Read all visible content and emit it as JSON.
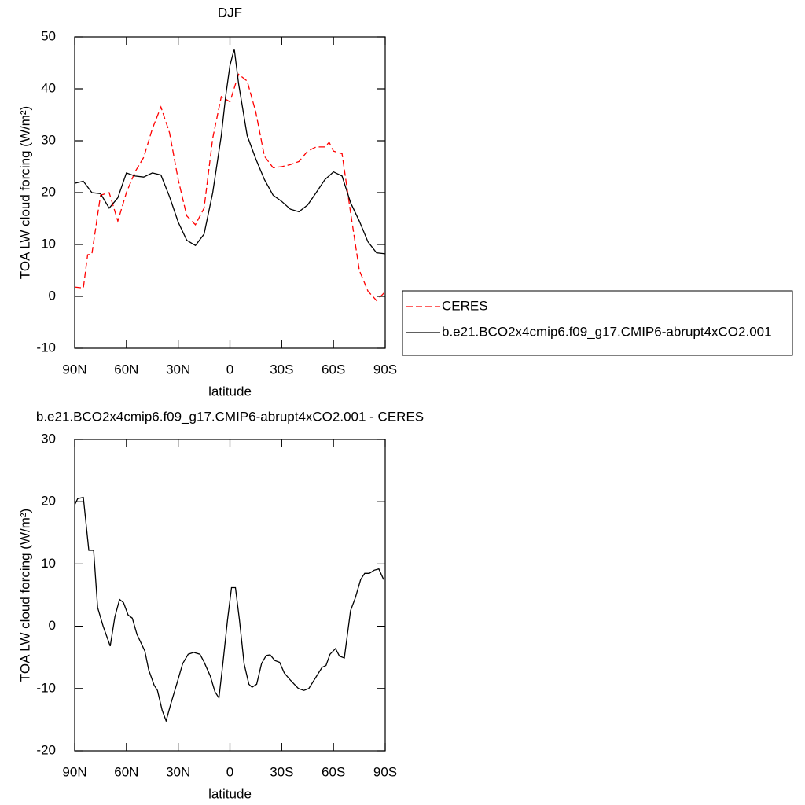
{
  "chart_data": [
    {
      "type": "line",
      "title": "DJF",
      "xlabel": "latitude",
      "ylabel": "TOA LW cloud forcing (W/m²)",
      "xlim": [
        90,
        -90
      ],
      "xticks": [
        {
          "value": 90,
          "label": "90N"
        },
        {
          "value": 60,
          "label": "60N"
        },
        {
          "value": 30,
          "label": "30N"
        },
        0,
        {
          "value": -30,
          "label": "30S"
        },
        {
          "value": -60,
          "label": "60S"
        },
        {
          "value": -90,
          "label": "90S"
        }
      ],
      "ylim": [
        -10,
        50
      ],
      "yticks": [
        -10,
        0,
        10,
        20,
        30,
        40,
        50
      ],
      "legend": "right",
      "series": [
        {
          "name": "CERES",
          "color": "#ff0000",
          "dash": true,
          "x": [
            90,
            85,
            82.5,
            80,
            75,
            70,
            65,
            60,
            55,
            50,
            45,
            40,
            35,
            30,
            25,
            20,
            15,
            10,
            5,
            0,
            -5,
            -10,
            -15,
            -20,
            -25,
            -30,
            -35,
            -40,
            -45,
            -50,
            -55,
            -57.5,
            -60,
            -65,
            -70,
            -75,
            -80,
            -85,
            -90
          ],
          "values": [
            1.8,
            1.6,
            8,
            8.2,
            19.5,
            20,
            14.5,
            20,
            24,
            26.8,
            32.3,
            36.5,
            31.5,
            22.5,
            15.5,
            13.8,
            17,
            30.5,
            38.5,
            37.5,
            42.8,
            41.5,
            35.5,
            27,
            24.8,
            25,
            25.4,
            26,
            28,
            28.8,
            28.8,
            29.7,
            28,
            27.5,
            16,
            5,
            1,
            -0.8,
            0.9
          ]
        },
        {
          "name": "b.e21.BCO2x4cmip6.f09_g17.CMIP6-abrupt4xCO2.001",
          "color": "#000000",
          "dash": false,
          "x": [
            90,
            85,
            80,
            75,
            70,
            65,
            60,
            55,
            50,
            45,
            40,
            35,
            30,
            25,
            20,
            15,
            10,
            5,
            2.5,
            0,
            -2.5,
            -5,
            -10,
            -15,
            -20,
            -25,
            -30,
            -35,
            -40,
            -45,
            -50,
            -55,
            -60,
            -65,
            -70,
            -75,
            -80,
            -85,
            -90
          ],
          "values": [
            21.8,
            22.2,
            20,
            19.8,
            17,
            19,
            23.8,
            23.2,
            23,
            23.8,
            23.4,
            19.2,
            14.3,
            10.8,
            9.8,
            12,
            20,
            31,
            38.5,
            44.5,
            47.7,
            41,
            31,
            26.5,
            22.5,
            19.5,
            18.3,
            16.8,
            16.3,
            17.6,
            20,
            22.5,
            24,
            23.2,
            18,
            14.5,
            10.5,
            8.4,
            8.2
          ]
        }
      ]
    },
    {
      "type": "line",
      "title": "b.e21.BCO2x4cmip6.f09_g17.CMIP6-abrupt4xCO2.001 - CERES",
      "xlabel": "latitude",
      "ylabel": "TOA LW cloud forcing (W/m²)",
      "xlim": [
        90,
        -90
      ],
      "xticks": [
        {
          "value": 90,
          "label": "90N"
        },
        {
          "value": 60,
          "label": "60N"
        },
        {
          "value": 30,
          "label": "30N"
        },
        0,
        {
          "value": -30,
          "label": "30S"
        },
        {
          "value": -60,
          "label": "60S"
        },
        {
          "value": -90,
          "label": "90S"
        }
      ],
      "ylim": [
        -20,
        30
      ],
      "yticks": [
        -20,
        -10,
        0,
        10,
        20,
        30
      ],
      "series": [
        {
          "color": "#000000",
          "dash": false,
          "x": [
            90,
            88.2,
            85,
            81.8,
            79,
            76.7,
            73.5,
            69.4,
            66.7,
            64,
            61.7,
            59,
            56.6,
            53.9,
            49.3,
            47.1,
            43.9,
            42,
            39.3,
            37,
            34.3,
            31.1,
            27.4,
            24.2,
            21,
            17.4,
            15.1,
            11.4,
            8.7,
            6.4,
            4.1,
            1.4,
            -0.9,
            -3.2,
            -5.5,
            -8.2,
            -11,
            -12.8,
            -15.5,
            -18.3,
            -21,
            -23.3,
            -26,
            -28.8,
            -31.5,
            -35.2,
            -39.7,
            -42.9,
            -45.7,
            -48,
            -53.4,
            -55.7,
            -58,
            -61.2,
            -63.5,
            -66.3,
            -69.9,
            -72.6,
            -75.8,
            -78.1,
            -80.8,
            -83.6,
            -86.3,
            -89.1
          ],
          "values": [
            19.5,
            20.5,
            20.7,
            12.2,
            12.2,
            3,
            0,
            -3.2,
            1.5,
            4.3,
            3.8,
            1.8,
            1.3,
            -1.3,
            -4,
            -7,
            -9.5,
            -10.3,
            -13.5,
            -15.2,
            -12.5,
            -9.5,
            -6,
            -4.5,
            -4.2,
            -4.5,
            -5.7,
            -8,
            -10.5,
            -11.5,
            -6,
            1,
            6.2,
            6.2,
            1,
            -6,
            -9.3,
            -9.8,
            -9.3,
            -6,
            -4.7,
            -4.6,
            -5.5,
            -5.8,
            -7.5,
            -8.7,
            -10,
            -10.3,
            -10,
            -9,
            -6.6,
            -6.3,
            -4.5,
            -3.6,
            -4.8,
            -5.1,
            2.5,
            4.5,
            7.5,
            8.5,
            8.5,
            9,
            9.2,
            7.5
          ]
        }
      ]
    }
  ]
}
